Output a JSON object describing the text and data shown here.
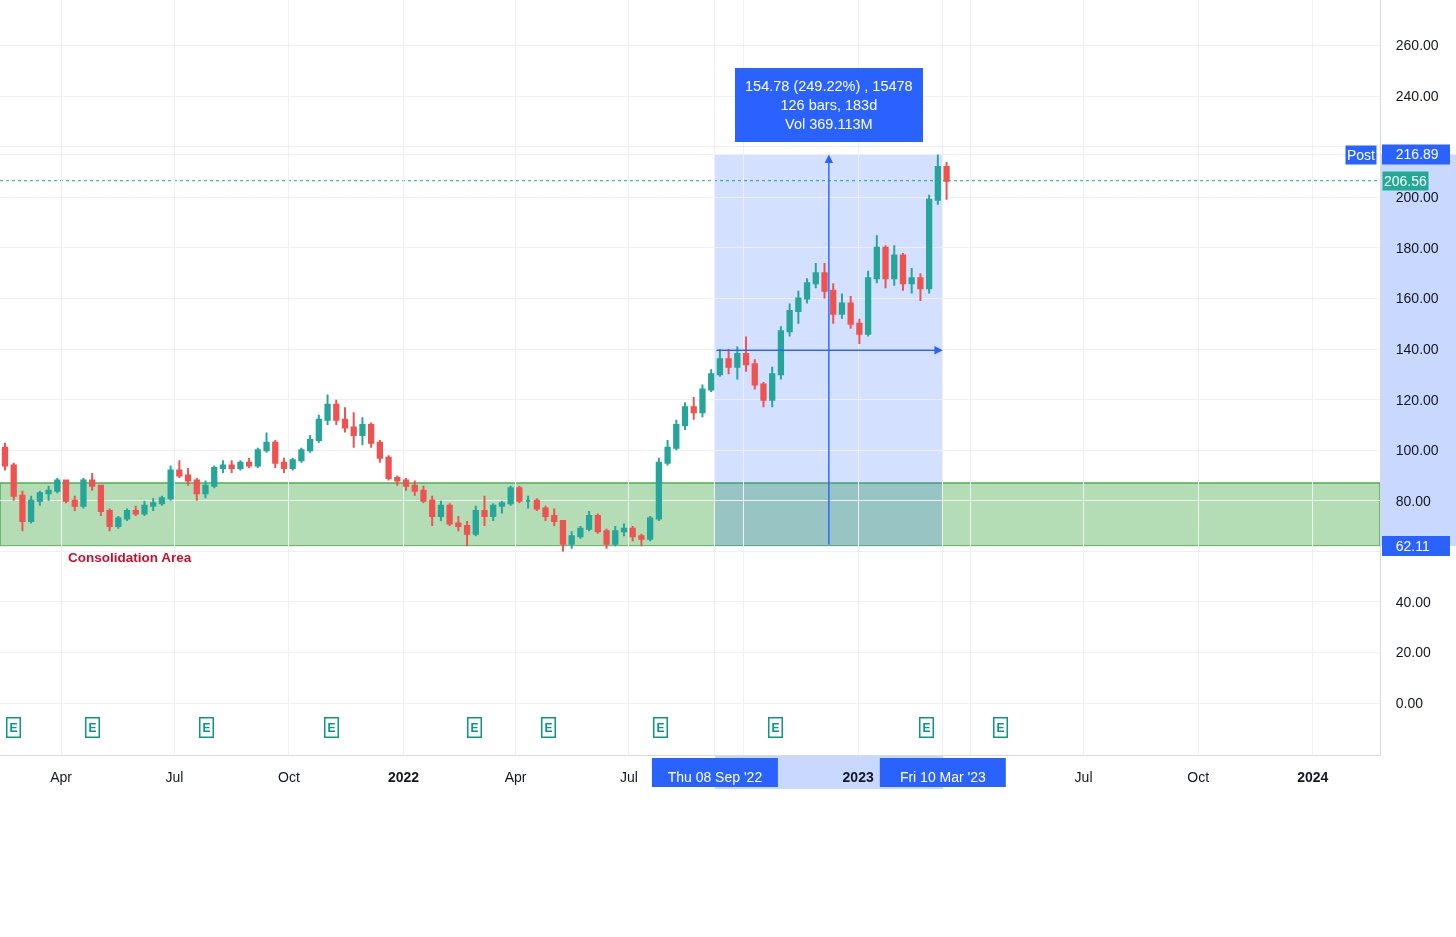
{
  "chart_data": {
    "type": "candlestick",
    "x": [
      "2021-02-15",
      "2021-02-22",
      "2021-03-01",
      "2021-03-08",
      "2021-03-15",
      "2021-03-22",
      "2021-03-29",
      "2021-04-05",
      "2021-04-12",
      "2021-04-19",
      "2021-04-26",
      "2021-05-03",
      "2021-05-10",
      "2021-05-17",
      "2021-05-24",
      "2021-05-31",
      "2021-06-07",
      "2021-06-14",
      "2021-06-21",
      "2021-06-28",
      "2021-07-05",
      "2021-07-12",
      "2021-07-19",
      "2021-07-26",
      "2021-08-02",
      "2021-08-09",
      "2021-08-16",
      "2021-08-23",
      "2021-08-30",
      "2021-09-06",
      "2021-09-13",
      "2021-09-20",
      "2021-09-27",
      "2021-10-04",
      "2021-10-11",
      "2021-10-18",
      "2021-10-25",
      "2021-11-01",
      "2021-11-08",
      "2021-11-15",
      "2021-11-22",
      "2021-11-29",
      "2021-12-06",
      "2021-12-13",
      "2021-12-20",
      "2021-12-27",
      "2022-01-03",
      "2022-01-10",
      "2022-01-17",
      "2022-01-24",
      "2022-01-31",
      "2022-02-07",
      "2022-02-14",
      "2022-02-21",
      "2022-02-28",
      "2022-03-07",
      "2022-03-14",
      "2022-03-21",
      "2022-03-28",
      "2022-04-04",
      "2022-04-11",
      "2022-04-18",
      "2022-04-25",
      "2022-05-02",
      "2022-05-09",
      "2022-05-16",
      "2022-05-23",
      "2022-05-30",
      "2022-06-06",
      "2022-06-13",
      "2022-06-20",
      "2022-06-27",
      "2022-07-04",
      "2022-07-11",
      "2022-07-18",
      "2022-07-25",
      "2022-08-01",
      "2022-08-08",
      "2022-08-15",
      "2022-08-22",
      "2022-08-29",
      "2022-09-05",
      "2022-09-12",
      "2022-09-19",
      "2022-09-26",
      "2022-10-03",
      "2022-10-10",
      "2022-10-17",
      "2022-10-24",
      "2022-10-31",
      "2022-11-07",
      "2022-11-14",
      "2022-11-21",
      "2022-11-28",
      "2022-12-05",
      "2022-12-12",
      "2022-12-19",
      "2022-12-26",
      "2023-01-02",
      "2023-01-09",
      "2023-01-16",
      "2023-01-23",
      "2023-01-30",
      "2023-02-06",
      "2023-02-13",
      "2023-02-20",
      "2023-02-27",
      "2023-03-06",
      "2023-03-13"
    ],
    "ohlc": [
      [
        101,
        103,
        92,
        94
      ],
      [
        94,
        95,
        80,
        82
      ],
      [
        82,
        84,
        68,
        72
      ],
      [
        72,
        82,
        71,
        80
      ],
      [
        80,
        84,
        78,
        83
      ],
      [
        83,
        86,
        80,
        84
      ],
      [
        84,
        89,
        83,
        88
      ],
      [
        88,
        88,
        79,
        80
      ],
      [
        80,
        82,
        76,
        78
      ],
      [
        78,
        89,
        77,
        88
      ],
      [
        88,
        91,
        84,
        86
      ],
      [
        86,
        86,
        74,
        76
      ],
      [
        76,
        77,
        68,
        70
      ],
      [
        70,
        74,
        69,
        73
      ],
      [
        73,
        77,
        72,
        76
      ],
      [
        76,
        78,
        74,
        75
      ],
      [
        75,
        80,
        74,
        78
      ],
      [
        78,
        81,
        76,
        79
      ],
      [
        79,
        82,
        78,
        81
      ],
      [
        81,
        94,
        80,
        92
      ],
      [
        92,
        96,
        89,
        90
      ],
      [
        90,
        93,
        86,
        88
      ],
      [
        88,
        89,
        80,
        83
      ],
      [
        83,
        88,
        81,
        86
      ],
      [
        86,
        94,
        85,
        93
      ],
      [
        93,
        96,
        91,
        94
      ],
      [
        94,
        96,
        91,
        93
      ],
      [
        93,
        96,
        92,
        95
      ],
      [
        95,
        97,
        93,
        94
      ],
      [
        94,
        101,
        93,
        100
      ],
      [
        100,
        107,
        99,
        103
      ],
      [
        103,
        104,
        93,
        95
      ],
      [
        95,
        97,
        91,
        93
      ],
      [
        93,
        97,
        92,
        96
      ],
      [
        96,
        101,
        95,
        100
      ],
      [
        100,
        106,
        99,
        104
      ],
      [
        104,
        114,
        103,
        112
      ],
      [
        112,
        122,
        110,
        118
      ],
      [
        118,
        120,
        110,
        112
      ],
      [
        112,
        117,
        107,
        109
      ],
      [
        109,
        115,
        101,
        106
      ],
      [
        106,
        113,
        102,
        110
      ],
      [
        110,
        111,
        101,
        103
      ],
      [
        103,
        104,
        95,
        97
      ],
      [
        97,
        98,
        88,
        89
      ],
      [
        89,
        90,
        86,
        88
      ],
      [
        88,
        89,
        84,
        86
      ],
      [
        86,
        88,
        82,
        84
      ],
      [
        84,
        86,
        79,
        80
      ],
      [
        80,
        82,
        70,
        74
      ],
      [
        74,
        80,
        72,
        78
      ],
      [
        78,
        79,
        70,
        71
      ],
      [
        71,
        74,
        68,
        70
      ],
      [
        70,
        72,
        62,
        67
      ],
      [
        67,
        78,
        66,
        76
      ],
      [
        76,
        82,
        70,
        74
      ],
      [
        74,
        79,
        72,
        78
      ],
      [
        78,
        80,
        75,
        79
      ],
      [
        79,
        86,
        78,
        85
      ],
      [
        85,
        86,
        79,
        80
      ],
      [
        80,
        82,
        77,
        80
      ],
      [
        80,
        81,
        76,
        77
      ],
      [
        77,
        78,
        72,
        74
      ],
      [
        74,
        77,
        70,
        72
      ],
      [
        72,
        72,
        60,
        63
      ],
      [
        63,
        68,
        61,
        66
      ],
      [
        66,
        70,
        65,
        69
      ],
      [
        69,
        76,
        68,
        74
      ],
      [
        74,
        75,
        67,
        68
      ],
      [
        68,
        69,
        61,
        63
      ],
      [
        63,
        70,
        62,
        68
      ],
      [
        68,
        71,
        66,
        69
      ],
      [
        69,
        70,
        64,
        66
      ],
      [
        66,
        67,
        62,
        65
      ],
      [
        65,
        74,
        64,
        73
      ],
      [
        73,
        97,
        72,
        95
      ],
      [
        95,
        104,
        94,
        101
      ],
      [
        101,
        112,
        100,
        110
      ],
      [
        110,
        119,
        108,
        117
      ],
      [
        117,
        121,
        112,
        115
      ],
      [
        115,
        126,
        113,
        124
      ],
      [
        124,
        132,
        123,
        130
      ],
      [
        130,
        140,
        129,
        136
      ],
      [
        136,
        140,
        130,
        133
      ],
      [
        133,
        141,
        128,
        138
      ],
      [
        138,
        145,
        131,
        134
      ],
      [
        134,
        136,
        124,
        126
      ],
      [
        126,
        127,
        117,
        120
      ],
      [
        120,
        133,
        117,
        130
      ],
      [
        130,
        149,
        128,
        147
      ],
      [
        147,
        158,
        145,
        155
      ],
      [
        155,
        163,
        150,
        160
      ],
      [
        160,
        168,
        158,
        166
      ],
      [
        166,
        174,
        164,
        170
      ],
      [
        170,
        174,
        160,
        163
      ],
      [
        163,
        166,
        150,
        154
      ],
      [
        154,
        162,
        152,
        158
      ],
      [
        158,
        161,
        148,
        150
      ],
      [
        150,
        152,
        142,
        146
      ],
      [
        146,
        171,
        145,
        168
      ],
      [
        168,
        185,
        166,
        180
      ],
      [
        180,
        181,
        164,
        168
      ],
      [
        168,
        181,
        165,
        177
      ],
      [
        177,
        178,
        163,
        166
      ],
      [
        166,
        172,
        162,
        168
      ],
      [
        168,
        170,
        159,
        164
      ],
      [
        164,
        201,
        162,
        199
      ],
      [
        199,
        216.89,
        197,
        212
      ],
      [
        212,
        214,
        199,
        206.56
      ]
    ],
    "colors": [
      "#ef5350",
      "#ef5350",
      "#ef5350",
      "#26a69a",
      "#26a69a",
      "#26a69a",
      "#26a69a",
      "#ef5350",
      "#ef5350",
      "#26a69a",
      "#ef5350",
      "#ef5350",
      "#ef5350",
      "#26a69a",
      "#26a69a",
      "#ef5350",
      "#26a69a",
      "#26a69a",
      "#26a69a",
      "#26a69a",
      "#ef5350",
      "#ef5350",
      "#ef5350",
      "#26a69a",
      "#26a69a",
      "#26a69a",
      "#ef5350",
      "#26a69a",
      "#ef5350",
      "#26a69a",
      "#26a69a",
      "#ef5350",
      "#ef5350",
      "#26a69a",
      "#26a69a",
      "#26a69a",
      "#26a69a",
      "#26a69a",
      "#ef5350",
      "#ef5350",
      "#ef5350",
      "#26a69a",
      "#ef5350",
      "#ef5350",
      "#ef5350",
      "#ef5350",
      "#ef5350",
      "#ef5350",
      "#ef5350",
      "#ef5350",
      "#26a69a",
      "#ef5350",
      "#ef5350",
      "#ef5350",
      "#26a69a",
      "#ef5350",
      "#26a69a",
      "#26a69a",
      "#26a69a",
      "#ef5350",
      "#26a69a",
      "#ef5350",
      "#ef5350",
      "#ef5350",
      "#ef5350",
      "#26a69a",
      "#26a69a",
      "#26a69a",
      "#ef5350",
      "#ef5350",
      "#26a69a",
      "#26a69a",
      "#ef5350",
      "#ef5350",
      "#26a69a",
      "#26a69a",
      "#26a69a",
      "#26a69a",
      "#26a69a",
      "#ef5350",
      "#26a69a",
      "#26a69a",
      "#26a69a",
      "#ef5350",
      "#26a69a",
      "#ef5350",
      "#ef5350",
      "#ef5350",
      "#26a69a",
      "#26a69a",
      "#26a69a",
      "#26a69a",
      "#26a69a",
      "#26a69a",
      "#ef5350",
      "#ef5350",
      "#26a69a",
      "#ef5350",
      "#ef5350",
      "#26a69a",
      "#26a69a",
      "#ef5350",
      "#26a69a",
      "#ef5350",
      "#26a69a",
      "#ef5350",
      "#26a69a",
      "#26a69a",
      "#ef5350"
    ],
    "xlim": [
      "2021-02-11",
      "2024-02-24"
    ],
    "ylim": [
      -20.5,
      278
    ],
    "xticks": [
      {
        "value": "2021-04-01",
        "label": "Apr"
      },
      {
        "value": "2021-07-01",
        "label": "Jul"
      },
      {
        "value": "2021-10-01",
        "label": "Oct"
      },
      {
        "value": "2022-01-01",
        "label": "2022"
      },
      {
        "value": "2022-04-01",
        "label": "Apr"
      },
      {
        "value": "2022-07-01",
        "label": "Jul"
      },
      {
        "value": "2022-09-08",
        "label": "Thu 08 Sep '22"
      },
      {
        "value": "2022-10-01",
        "label": null
      },
      {
        "value": "2023-01-01",
        "label": "2023"
      },
      {
        "value": "2023-03-10",
        "label": "Fri 10 Mar '23"
      },
      {
        "value": "2023-04-01",
        "label": null
      },
      {
        "value": "2023-07-01",
        "label": "Jul"
      },
      {
        "value": "2023-10-01",
        "label": "Oct"
      },
      {
        "value": "2024-01-01",
        "label": "2024"
      }
    ],
    "yticks": [
      {
        "value": 0,
        "label": "0.00"
      },
      {
        "value": 20,
        "label": "20.00"
      },
      {
        "value": 40,
        "label": "40.00"
      },
      {
        "value": 60,
        "label": null
      },
      {
        "value": 62.11,
        "label": "62.11"
      },
      {
        "value": 80,
        "label": "80.00"
      },
      {
        "value": 100,
        "label": "100.00"
      },
      {
        "value": 120,
        "label": "120.00"
      },
      {
        "value": 140,
        "label": "140.00"
      },
      {
        "value": 160,
        "label": "160.00"
      },
      {
        "value": 180,
        "label": "180.00"
      },
      {
        "value": 200,
        "label": "200.00"
      },
      {
        "value": 216.89,
        "label": "216.89"
      },
      {
        "value": 220,
        "label": null
      },
      {
        "value": 240,
        "label": "240.00"
      },
      {
        "value": 260,
        "label": "260.00"
      }
    ],
    "grid": true,
    "bands": [
      {
        "axis": "y",
        "from": 62.11,
        "to": 87,
        "label": "Consolidation Area",
        "color": "#4caf50"
      },
      {
        "axis": "x",
        "from": "2022-09-08",
        "to": "2023-03-10",
        "label": "154.78 (249.22%) , 15478\n126 bars, 183d\nVol 369.113M",
        "color": "#2962ff"
      }
    ],
    "ref_lines": [
      {
        "axis": "y",
        "value": 206.56,
        "label": "206.56",
        "color": "#22ab94",
        "line_style": "dotted"
      }
    ],
    "annotations": [
      {
        "text": "Post",
        "y": 216.89
      },
      {
        "text": "E",
        "x": "2021-02-22"
      },
      {
        "text": "E",
        "x": "2021-04-26"
      },
      {
        "text": "E",
        "x": "2021-07-27"
      },
      {
        "text": "E",
        "x": "2021-11-04"
      },
      {
        "text": "E",
        "x": "2022-02-27"
      },
      {
        "text": "E",
        "x": "2022-04-27"
      },
      {
        "text": "E",
        "x": "2022-07-26"
      },
      {
        "text": "E",
        "x": "2022-10-27"
      },
      {
        "text": "E",
        "x": "2023-02-25"
      },
      {
        "text": "E",
        "x": "2023-04-25"
      }
    ]
  }
}
